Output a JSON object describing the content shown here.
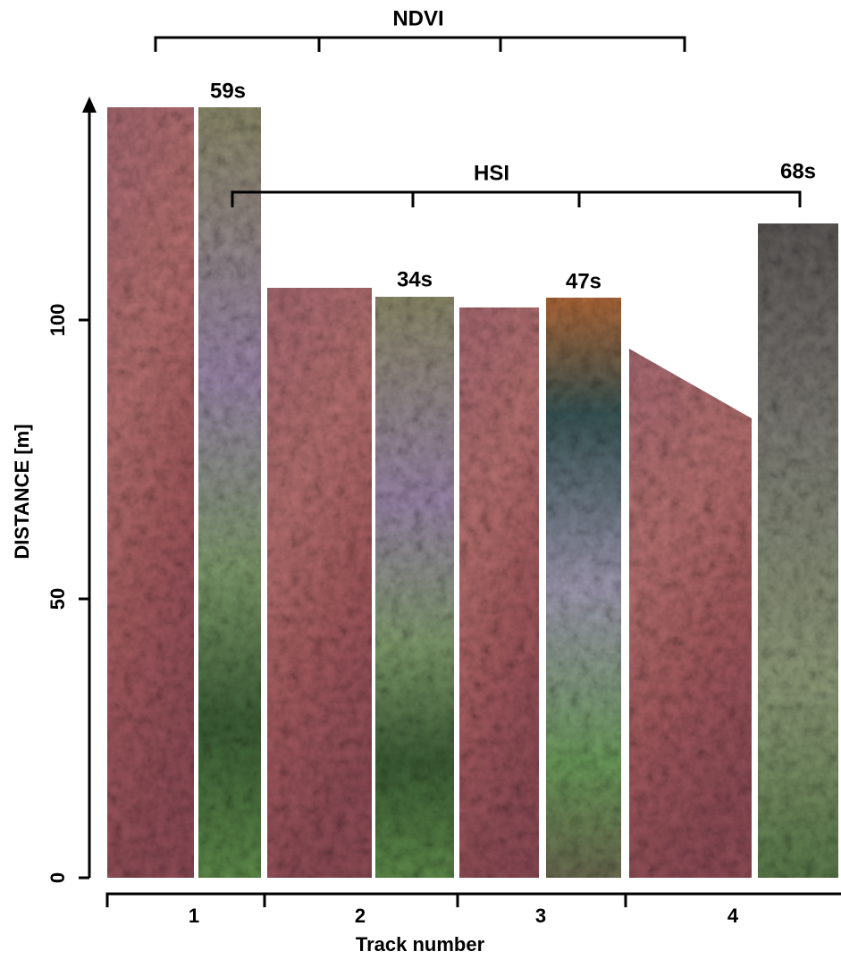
{
  "title_ndvi": "NDVI",
  "title_hsi": "HSI",
  "times": [
    "59s",
    "34s",
    "47s",
    "68s"
  ],
  "y_axis": {
    "label": "DISTANCE [m]",
    "ticks": [
      0,
      50,
      100
    ]
  },
  "x_axis": {
    "label": "Track number",
    "tracks": [
      "1",
      "2",
      "3",
      "4"
    ]
  }
}
